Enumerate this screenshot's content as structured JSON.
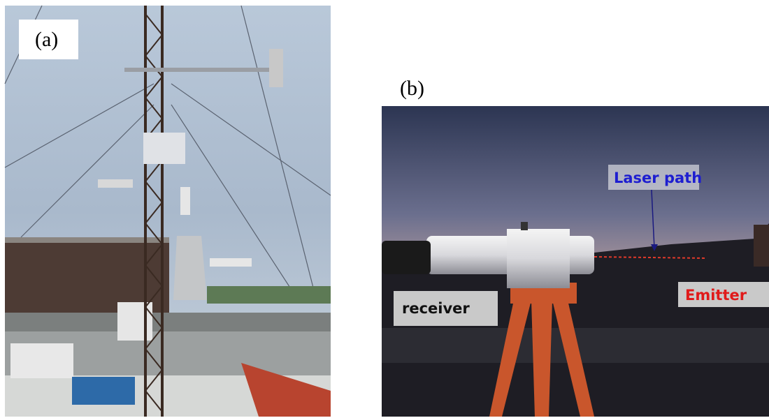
{
  "panel_a": {
    "label": "(a)"
  },
  "panel_b": {
    "label": "(b)",
    "laser_path": "Laser path",
    "receiver": "receiver",
    "emitter": "Emitter"
  }
}
